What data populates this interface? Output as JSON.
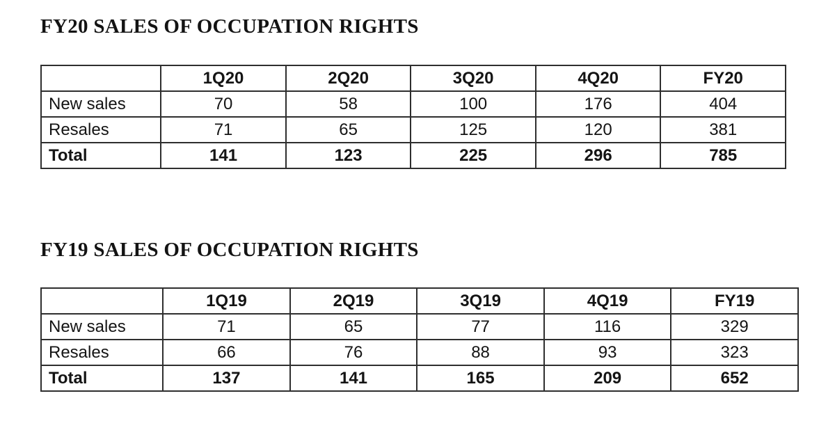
{
  "page": {
    "background": "#ffffff",
    "text_color": "#141414",
    "border_color": "#2e2e2e"
  },
  "tables": [
    {
      "title": "FY20 SALES OF OCCUPATION RIGHTS",
      "columns": [
        "",
        "1Q20",
        "2Q20",
        "3Q20",
        "4Q20",
        "FY20"
      ],
      "rows": [
        {
          "label": "New sales",
          "values": [
            70,
            58,
            100,
            176,
            404
          ]
        },
        {
          "label": "Resales",
          "values": [
            71,
            65,
            125,
            120,
            381
          ]
        },
        {
          "label": "Total",
          "values": [
            141,
            123,
            225,
            296,
            785
          ]
        }
      ]
    },
    {
      "title": "FY19 SALES OF OCCUPATION RIGHTS",
      "columns": [
        "",
        "1Q19",
        "2Q19",
        "3Q19",
        "4Q19",
        "FY19"
      ],
      "rows": [
        {
          "label": "New sales",
          "values": [
            71,
            65,
            77,
            116,
            329
          ]
        },
        {
          "label": "Resales",
          "values": [
            66,
            76,
            88,
            93,
            323
          ]
        },
        {
          "label": "Total",
          "values": [
            137,
            141,
            165,
            209,
            652
          ]
        }
      ]
    }
  ]
}
